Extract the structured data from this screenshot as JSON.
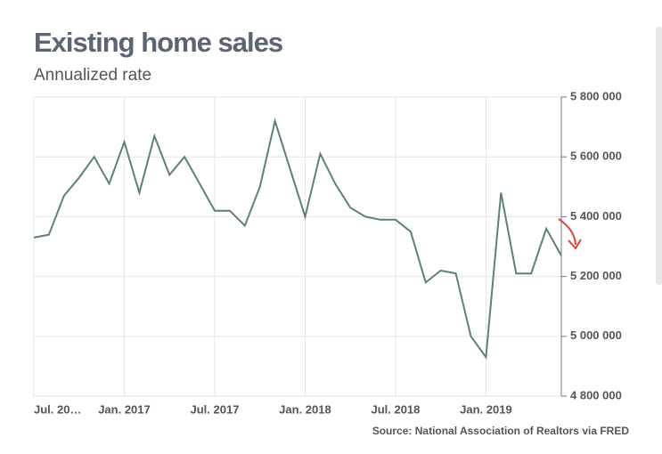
{
  "chart_data": {
    "type": "line",
    "title": "Existing home sales",
    "subtitle": "Annualized rate",
    "source": "Source: National Association of Realtors via FRED",
    "categories": [
      "Jul. 20…",
      null,
      null,
      null,
      null,
      null,
      "Jan. 2017",
      null,
      null,
      null,
      null,
      null,
      "Jul. 2017",
      null,
      null,
      null,
      null,
      null,
      "Jan. 2018",
      null,
      null,
      null,
      null,
      null,
      "Jul. 2018",
      null,
      null,
      null,
      null,
      null,
      "Jan. 2019",
      null,
      null,
      null,
      null,
      null
    ],
    "series": [
      {
        "name": "Existing home sales",
        "color": "#5e7f7a",
        "values": [
          5330000,
          5340000,
          5470000,
          5530000,
          5600000,
          5510000,
          5650000,
          5480000,
          5670000,
          5540000,
          5600000,
          5510000,
          5420000,
          5420000,
          5370000,
          5500000,
          5720000,
          5560000,
          5400000,
          5610000,
          5510000,
          5430000,
          5400000,
          5390000,
          5390000,
          5350000,
          5180000,
          5220000,
          5210000,
          5000000,
          4930000,
          5480000,
          5210000,
          5210000,
          5360000,
          5270000
        ]
      }
    ],
    "ylim": [
      4800000,
      5800000
    ],
    "yticks": [
      {
        "value": 4800000,
        "label": "4 800 000"
      },
      {
        "value": 5000000,
        "label": "5 000 000"
      },
      {
        "value": 5200000,
        "label": "5 200 000"
      },
      {
        "value": 5400000,
        "label": "5 400 000"
      },
      {
        "value": 5600000,
        "label": "5 600 000"
      },
      {
        "value": 5800000,
        "label": "5 800 000"
      }
    ],
    "grid": true
  }
}
